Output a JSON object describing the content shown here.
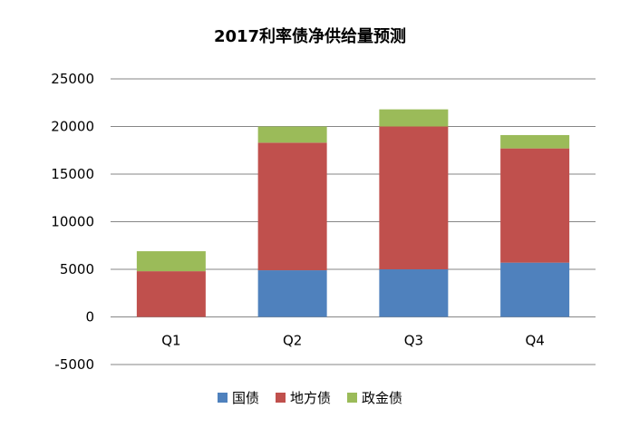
{
  "chart_data": {
    "type": "bar",
    "stacked": true,
    "title": "2017利率债净供给量预测",
    "categories": [
      "Q1",
      "Q2",
      "Q3",
      "Q4"
    ],
    "series": [
      {
        "name": "国债",
        "color": "#4F81BD",
        "values": [
          0,
          4900,
          5000,
          5700
        ]
      },
      {
        "name": "地方债",
        "color": "#C0504D",
        "values": [
          4800,
          13400,
          15000,
          12000
        ]
      },
      {
        "name": "政金债",
        "color": "#9BBB59",
        "values": [
          2100,
          1700,
          1800,
          1400
        ]
      }
    ],
    "ylim": [
      -5000,
      25000
    ],
    "yticks": [
      "-5000",
      "0",
      "5000",
      "10000",
      "15000",
      "20000",
      "25000"
    ],
    "ytick_values": [
      -5000,
      0,
      5000,
      10000,
      15000,
      20000,
      25000
    ],
    "grid": true,
    "legend_position": "bottom"
  }
}
